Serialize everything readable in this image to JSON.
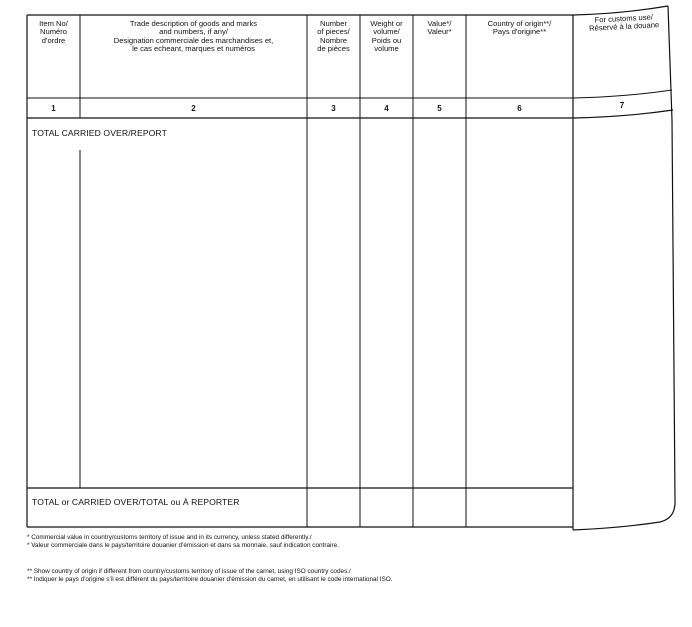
{
  "form": {
    "columns": [
      {
        "number": "1",
        "header": [
          "Item No/",
          "Numéro",
          "d'ordre"
        ]
      },
      {
        "number": "2",
        "header": [
          "Trade description of goods and marks",
          "and numbers, if any/",
          "Designation commerciale des marchandises et,",
          "le cas echeant, marques et numéros"
        ]
      },
      {
        "number": "3",
        "header": [
          "Number",
          "of pieces/",
          "Nombre",
          "de pièces"
        ]
      },
      {
        "number": "4",
        "header": [
          "Weight or",
          "volume/",
          "Poids ou",
          "volume"
        ]
      },
      {
        "number": "5",
        "header": [
          "Value*/",
          "Valeur*"
        ]
      },
      {
        "number": "6",
        "header": [
          "Country of origin**/",
          "Pays d'origine**"
        ]
      },
      {
        "number": "7",
        "header": [
          "For customs use/",
          "Réservé à la douane"
        ]
      }
    ],
    "carried_over_label": "TOTAL CARRIED OVER/REPORT",
    "total_label": "TOTAL or CARRIED OVER/TOTAL ou À REPORTER"
  },
  "footnotes": [
    "* Commercial value in country/customs territory of issue and in its currency, unless stated differently./",
    "* Valeur commerciale dans le pays/territoire douanier d'émission et dans sa monnaie, sauf indication contraire.",
    "** Show country of origin if different from country/customs territory of issue of the carnet, using ISO country codes./",
    "** Indiquer le pays d'origine s'il est différent du pays/territoire douanier d'émission du carnet, en utilisant le code international ISO."
  ]
}
